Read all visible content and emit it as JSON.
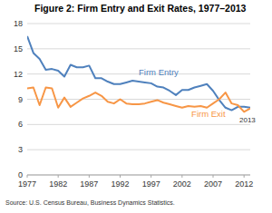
{
  "chart_data": {
    "type": "line",
    "title": "Figure 2: Firm Entry and Exit Rates, 1977–2013",
    "source": "Source: U.S. Census Bureau, Business Dynamics Statistics.",
    "annotations": [
      "2013"
    ],
    "x": [
      1977,
      1978,
      1979,
      1980,
      1981,
      1982,
      1983,
      1984,
      1985,
      1986,
      1987,
      1988,
      1989,
      1990,
      1991,
      1992,
      1993,
      1994,
      1995,
      1996,
      1997,
      1998,
      1999,
      2000,
      2001,
      2002,
      2003,
      2004,
      2005,
      2006,
      2007,
      2008,
      2009,
      2010,
      2011,
      2012,
      2013
    ],
    "series": [
      {
        "name": "Firm Entry",
        "color": "#4f81bd",
        "values": [
          16.5,
          14.5,
          13.8,
          12.5,
          12.6,
          12.4,
          11.7,
          13.1,
          12.8,
          12.8,
          13.0,
          11.5,
          11.5,
          11.1,
          10.8,
          10.8,
          11.0,
          11.2,
          11.1,
          11.0,
          10.9,
          10.5,
          10.4,
          10.0,
          9.5,
          10.1,
          10.1,
          10.4,
          10.6,
          10.8,
          10.0,
          8.9,
          8.0,
          7.7,
          8.1,
          8.1,
          8.0
        ]
      },
      {
        "name": "Firm Exit",
        "color": "#f79646",
        "values": [
          10.3,
          10.4,
          8.3,
          10.4,
          10.3,
          8.0,
          9.2,
          8.1,
          8.6,
          9.1,
          9.4,
          9.8,
          9.4,
          8.7,
          8.5,
          9.0,
          8.5,
          8.4,
          8.4,
          8.5,
          8.7,
          8.9,
          8.6,
          8.4,
          8.2,
          8.0,
          8.2,
          8.1,
          8.2,
          8.0,
          8.5,
          9.0,
          9.8,
          8.5,
          8.3,
          7.5,
          7.9
        ]
      }
    ],
    "xlim": [
      1977,
      2013
    ],
    "xticks": [
      1977,
      1982,
      1987,
      1992,
      1997,
      2002,
      2007,
      2012
    ],
    "ylim": [
      0,
      18
    ],
    "yticks": [
      0,
      3,
      6,
      9,
      12,
      15,
      18
    ],
    "grid": true
  }
}
